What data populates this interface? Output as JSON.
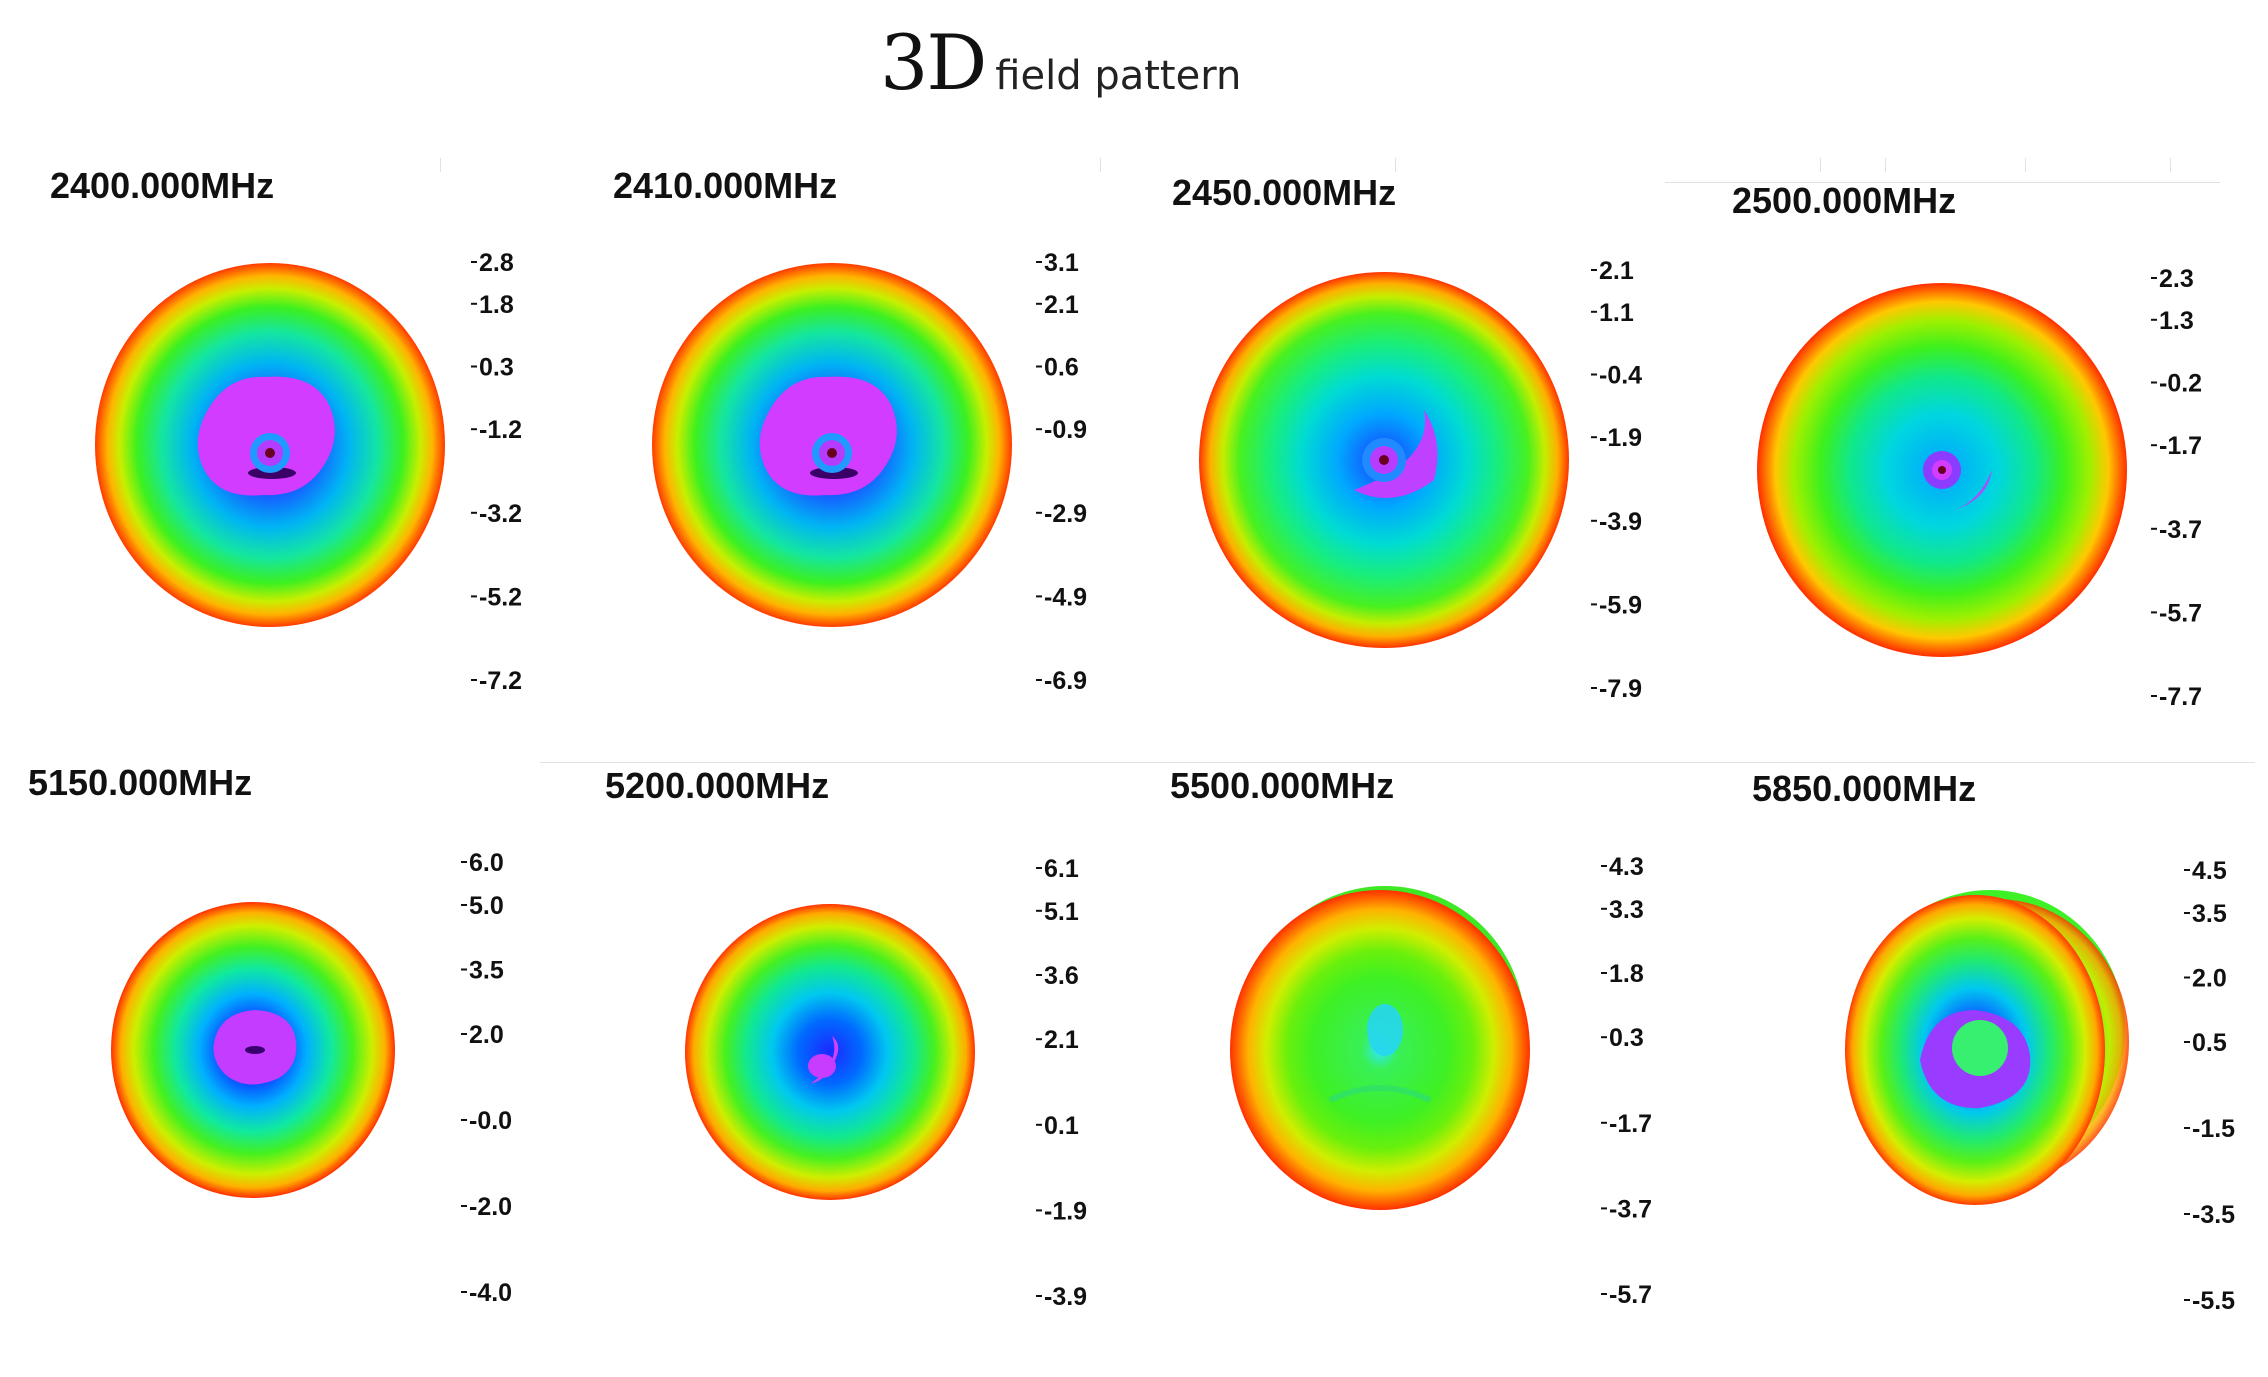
{
  "page": {
    "title_main": "3D",
    "title_sub": "field pattern"
  },
  "chart_data": [
    {
      "type": "heatmap",
      "title": "2400.000MHz",
      "colorbar_ticks": [
        "2.8",
        "1.8",
        "0.3",
        "-1.2",
        "-3.2",
        "-5.2",
        "-7.2"
      ],
      "range": [
        -7.2,
        2.8
      ]
    },
    {
      "type": "heatmap",
      "title": "2410.000MHz",
      "colorbar_ticks": [
        "3.1",
        "2.1",
        "0.6",
        "-0.9",
        "-2.9",
        "-4.9",
        "-6.9"
      ],
      "range": [
        -6.9,
        3.1
      ]
    },
    {
      "type": "heatmap",
      "title": "2450.000MHz",
      "colorbar_ticks": [
        "2.1",
        "1.1",
        "-0.4",
        "-1.9",
        "-3.9",
        "-5.9",
        "-7.9"
      ],
      "range": [
        -7.9,
        2.1
      ]
    },
    {
      "type": "heatmap",
      "title": "2500.000MHz",
      "colorbar_ticks": [
        "2.3",
        "1.3",
        "-0.2",
        "-1.7",
        "-3.7",
        "-5.7",
        "-7.7"
      ],
      "range": [
        -7.7,
        2.3
      ]
    },
    {
      "type": "heatmap",
      "title": "5150.000MHz",
      "colorbar_ticks": [
        "6.0",
        "5.0",
        "3.5",
        "2.0",
        "-0.0",
        "-2.0",
        "-4.0"
      ],
      "range": [
        -4.0,
        6.0
      ]
    },
    {
      "type": "heatmap",
      "title": "5200.000MHz",
      "colorbar_ticks": [
        "6.1",
        "5.1",
        "3.6",
        "2.1",
        "0.1",
        "-1.9",
        "-3.9"
      ],
      "range": [
        -3.9,
        6.1
      ]
    },
    {
      "type": "heatmap",
      "title": "5500.000MHz",
      "colorbar_ticks": [
        "4.3",
        "3.3",
        "1.8",
        "0.3",
        "-1.7",
        "-3.7",
        "-5.7"
      ],
      "range": [
        -5.7,
        4.3
      ]
    },
    {
      "type": "heatmap",
      "title": "5850.000MHz",
      "colorbar_ticks": [
        "4.5",
        "3.5",
        "2.0",
        "0.5",
        "-1.5",
        "-3.5",
        "-5.5"
      ],
      "range": [
        -5.5,
        4.5
      ]
    }
  ]
}
